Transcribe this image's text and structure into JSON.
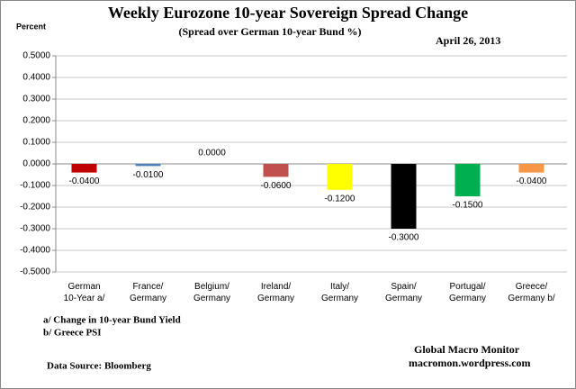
{
  "chart_data": {
    "type": "bar",
    "title": "Weekly Eurozone 10-year Sovereign Spread Change",
    "subtitle": "(Spread over German 10-year Bund  %)",
    "date": "April 26, 2013",
    "y_label": "Percent",
    "categories": [
      "German\n10-Year a/",
      "France/\nGermany",
      "Belgium/\nGermany",
      "Ireland/\nGermany",
      "Italy/\nGermany",
      "Spain/\nGermany",
      "Portugal/\nGermany",
      "Greece/\nGermany b/"
    ],
    "values": [
      -0.04,
      -0.01,
      0,
      -0.06,
      -0.12,
      -0.3,
      -0.15,
      -0.04
    ],
    "value_labels": [
      "-0.0400",
      "-0.0100",
      "0.0000",
      "-0.0600",
      "-0.1200",
      "-0.3000",
      "-0.1500",
      "-0.0400"
    ],
    "colors": [
      "#c00000",
      "#4f81bd",
      "#9bbb59",
      "#c0504d",
      "#ffff00",
      "#000000",
      "#00b050",
      "#f79646"
    ],
    "ylim": [
      -0.5,
      0.5
    ],
    "yticks": [
      {
        "value": -0.5,
        "label": "-0.5000"
      },
      {
        "value": -0.4,
        "label": "-0.4000"
      },
      {
        "value": -0.3,
        "label": "-0.3000"
      },
      {
        "value": -0.2,
        "label": "-0.2000"
      },
      {
        "value": -0.1,
        "label": "-0.1000"
      },
      {
        "value": 0,
        "label": "0.0000"
      },
      {
        "value": 0.1,
        "label": "0.1000"
      },
      {
        "value": 0.2,
        "label": "0.2000"
      },
      {
        "value": 0.3,
        "label": "0.3000"
      },
      {
        "value": 0.4,
        "label": "0.4000"
      },
      {
        "value": 0.5,
        "label": "0.5000"
      }
    ],
    "grid": true,
    "notes": [
      "a/ Change in 10-year Bund Yield",
      "b/ Greece PSI"
    ],
    "source": "Data Source:  Bloomberg",
    "credits": [
      "Global Macro Monitor",
      "macromon.wordpress.com"
    ]
  }
}
